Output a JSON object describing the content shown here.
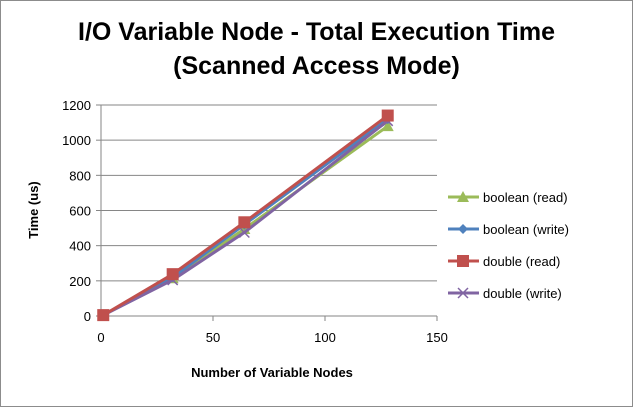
{
  "chart_data": {
    "type": "line",
    "title": [
      "I/O Variable Node - Total Execution Time",
      "(Scanned Access Mode)"
    ],
    "xlabel": "Number of Variable Nodes",
    "ylabel": "Time (us)",
    "xlim": [
      0,
      150
    ],
    "ylim": [
      0,
      1200
    ],
    "xticks": [
      0,
      50,
      100,
      150
    ],
    "yticks": [
      0,
      200,
      400,
      600,
      800,
      1000,
      1200
    ],
    "grid": "horizontal",
    "legend": "right",
    "x": [
      1,
      32,
      64,
      128
    ],
    "series": [
      {
        "name": "boolean (read)",
        "values": [
          5,
          215,
          495,
          1080
        ],
        "color": "#9bbb59",
        "marker": "triangle"
      },
      {
        "name": "boolean (write)",
        "values": [
          5,
          220,
          520,
          1120
        ],
        "color": "#4f81bd",
        "marker": "diamond"
      },
      {
        "name": "double (read)",
        "values": [
          5,
          238,
          533,
          1140
        ],
        "color": "#c0504d",
        "marker": "square"
      },
      {
        "name": "double (write)",
        "values": [
          5,
          205,
          475,
          1110
        ],
        "color": "#8064a2",
        "marker": "x"
      }
    ]
  }
}
